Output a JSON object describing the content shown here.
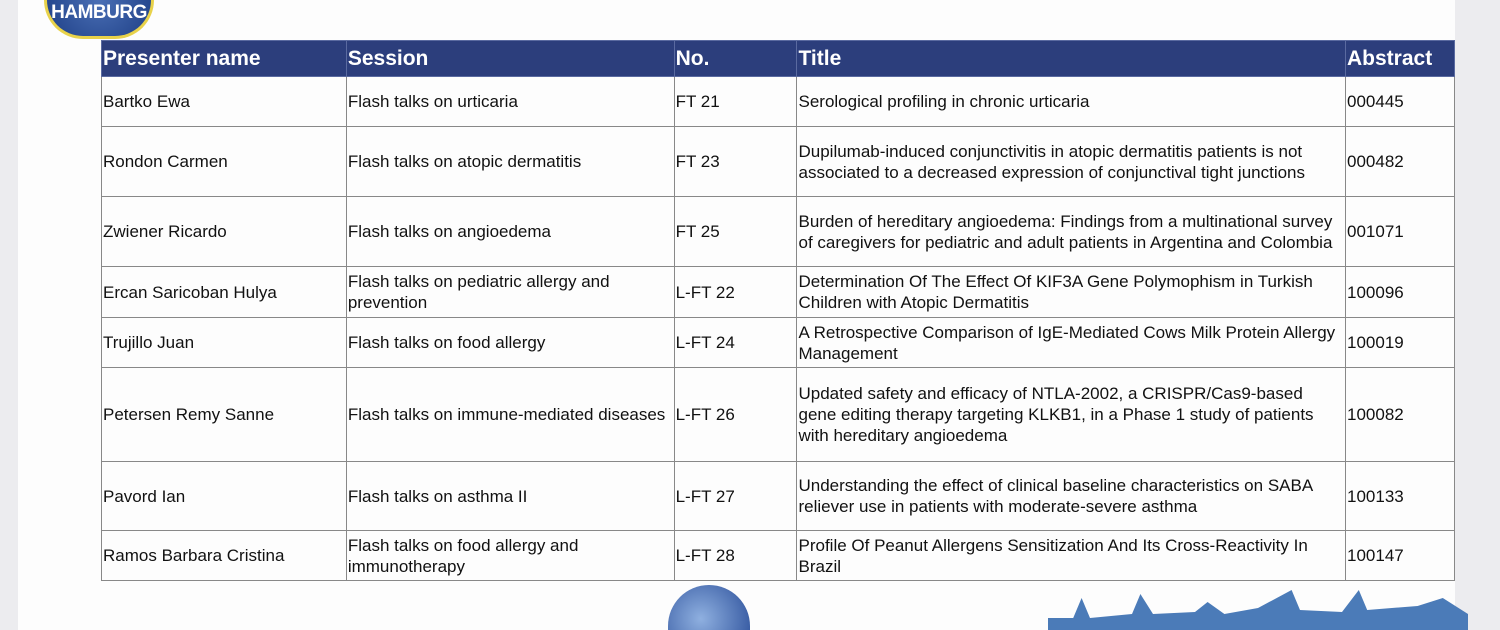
{
  "logo": {
    "text": "HAMBURG"
  },
  "table": {
    "headers": [
      "Presenter name",
      "Session",
      "No.",
      "Title",
      "Abstract"
    ],
    "rows": [
      [
        "Bartko Ewa",
        "Flash talks on urticaria",
        "FT 21",
        "Serological profiling in chronic urticaria",
        "000445"
      ],
      [
        "Rondon Carmen",
        "Flash talks on atopic dermatitis",
        "FT 23",
        "Dupilumab-induced conjunctivitis in atopic dermatitis patients is not associated to a decreased expression of conjunctival tight junctions",
        "000482"
      ],
      [
        "Zwiener Ricardo",
        "Flash talks on angioedema",
        "FT 25",
        "Burden of hereditary angioedema: Findings from a multinational survey of caregivers for pediatric and adult patients in Argentina and Colombia",
        "001071"
      ],
      [
        "Ercan Saricoban Hulya",
        "Flash talks on pediatric allergy and prevention",
        "L-FT 22",
        "Determination Of The Effect Of KIF3A Gene Polymophism in Turkish Children with Atopic Dermatitis",
        "100096"
      ],
      [
        "Trujillo Juan",
        "Flash talks on food allergy",
        "L-FT 24",
        "A Retrospective Comparison of IgE-Mediated Cows Milk Protein Allergy Management",
        "100019"
      ],
      [
        "Petersen Remy Sanne",
        "Flash talks on immune-mediated diseases",
        "L-FT 26",
        "Updated safety and efficacy of NTLA-2002, a CRISPR/Cas9-based gene editing therapy targeting KLKB1, in a Phase 1 study of patients with hereditary angioedema",
        "100082"
      ],
      [
        "Pavord Ian",
        "Flash talks on asthma II",
        "L-FT 27",
        "Understanding the effect of clinical baseline characteristics on SABA reliever use in patients with moderate-severe asthma",
        "100133"
      ],
      [
        "Ramos Barbara Cristina",
        "Flash talks on food allergy and immunotherapy",
        "L-FT 28",
        "Profile Of Peanut Allergens Sensitization And Its Cross-Reactivity In Brazil",
        "100147"
      ]
    ]
  },
  "colors": {
    "header_bg": "#2c3e7c",
    "skyline": "#4b7bb8"
  }
}
